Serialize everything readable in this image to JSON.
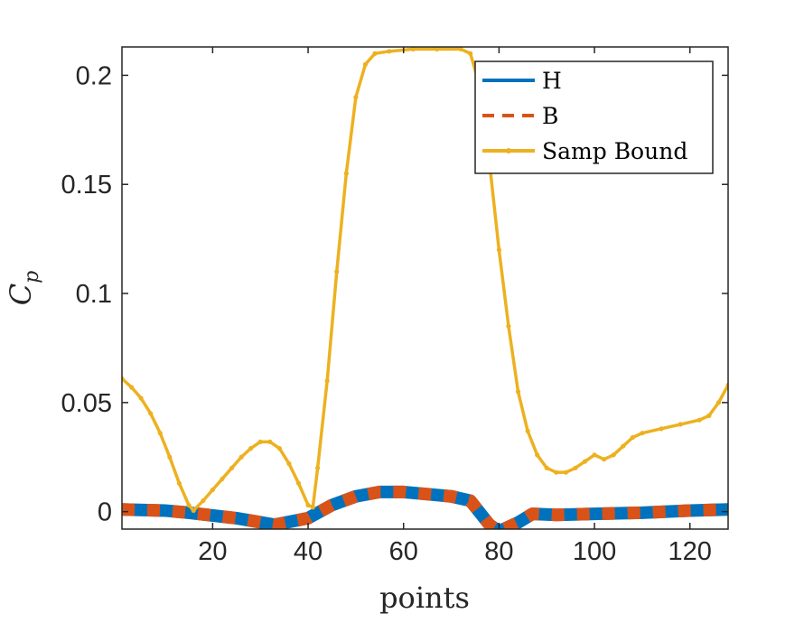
{
  "chart_data": {
    "type": "line",
    "xlabel": "points",
    "ylabel_base": "C",
    "ylabel_sub": "p",
    "xlim": [
      1,
      128
    ],
    "ylim": [
      -0.008,
      0.213
    ],
    "xticks": [
      20,
      40,
      60,
      80,
      100,
      120
    ],
    "yticks": [
      0,
      0.05,
      0.1,
      0.15,
      0.2
    ],
    "xtick_labels": [
      "20",
      "40",
      "60",
      "80",
      "100",
      "120"
    ],
    "ytick_labels": [
      "0",
      "0.05",
      "0.1",
      "0.15",
      "0.2"
    ],
    "grid": false,
    "legend_position": "top-right",
    "series": [
      {
        "name": "H",
        "color": "#0072BD",
        "style": "solid",
        "points": [
          [
            1,
            0.001
          ],
          [
            10,
            0.0005
          ],
          [
            15,
            -0.0005
          ],
          [
            25,
            -0.003
          ],
          [
            33,
            -0.006
          ],
          [
            40,
            -0.003
          ],
          [
            45,
            0.003
          ],
          [
            50,
            0.007
          ],
          [
            55,
            0.009
          ],
          [
            60,
            0.009
          ],
          [
            65,
            0.008
          ],
          [
            70,
            0.007
          ],
          [
            74,
            0.005
          ],
          [
            78,
            -0.006
          ],
          [
            80,
            -0.009
          ],
          [
            84,
            -0.005
          ],
          [
            87,
            -0.001
          ],
          [
            92,
            -0.0015
          ],
          [
            100,
            -0.001
          ],
          [
            110,
            -0.0005
          ],
          [
            120,
            0.0005
          ],
          [
            128,
            0.001
          ]
        ]
      },
      {
        "name": "B",
        "color": "#D95319",
        "style": "dashed",
        "points": [
          [
            1,
            0.001
          ],
          [
            10,
            0.0005
          ],
          [
            15,
            -0.0005
          ],
          [
            25,
            -0.003
          ],
          [
            33,
            -0.006
          ],
          [
            40,
            -0.003
          ],
          [
            45,
            0.003
          ],
          [
            50,
            0.007
          ],
          [
            55,
            0.009
          ],
          [
            60,
            0.009
          ],
          [
            65,
            0.008
          ],
          [
            70,
            0.007
          ],
          [
            74,
            0.005
          ],
          [
            78,
            -0.006
          ],
          [
            80,
            -0.009
          ],
          [
            84,
            -0.005
          ],
          [
            87,
            -0.001
          ],
          [
            92,
            -0.0015
          ],
          [
            100,
            -0.001
          ],
          [
            110,
            -0.0005
          ],
          [
            120,
            0.0005
          ],
          [
            128,
            0.001
          ]
        ]
      },
      {
        "name": "Samp Bound",
        "color": "#EDB120",
        "style": "solid-dot",
        "points": [
          [
            1,
            0.061
          ],
          [
            3,
            0.057
          ],
          [
            5,
            0.052
          ],
          [
            7,
            0.045
          ],
          [
            9,
            0.036
          ],
          [
            11,
            0.025
          ],
          [
            13,
            0.013
          ],
          [
            15,
            0.003
          ],
          [
            16,
            0.0005
          ],
          [
            18,
            0.005
          ],
          [
            20,
            0.01
          ],
          [
            22,
            0.015
          ],
          [
            24,
            0.02
          ],
          [
            26,
            0.025
          ],
          [
            28,
            0.029
          ],
          [
            30,
            0.032
          ],
          [
            32,
            0.032
          ],
          [
            34,
            0.029
          ],
          [
            36,
            0.022
          ],
          [
            38,
            0.013
          ],
          [
            40,
            0.003
          ],
          [
            41,
            0.002
          ],
          [
            42,
            0.02
          ],
          [
            44,
            0.06
          ],
          [
            46,
            0.11
          ],
          [
            48,
            0.155
          ],
          [
            50,
            0.19
          ],
          [
            52,
            0.205
          ],
          [
            54,
            0.21
          ],
          [
            57,
            0.211
          ],
          [
            62,
            0.212
          ],
          [
            67,
            0.212
          ],
          [
            72,
            0.212
          ],
          [
            74,
            0.21
          ],
          [
            76,
            0.195
          ],
          [
            78,
            0.16
          ],
          [
            80,
            0.12
          ],
          [
            82,
            0.085
          ],
          [
            84,
            0.055
          ],
          [
            86,
            0.037
          ],
          [
            88,
            0.026
          ],
          [
            90,
            0.02
          ],
          [
            92,
            0.018
          ],
          [
            94,
            0.018
          ],
          [
            96,
            0.02
          ],
          [
            98,
            0.023
          ],
          [
            100,
            0.026
          ],
          [
            102,
            0.024
          ],
          [
            104,
            0.026
          ],
          [
            106,
            0.03
          ],
          [
            108,
            0.034
          ],
          [
            110,
            0.036
          ],
          [
            114,
            0.038
          ],
          [
            118,
            0.04
          ],
          [
            122,
            0.042
          ],
          [
            124,
            0.044
          ],
          [
            126,
            0.05
          ],
          [
            128,
            0.058
          ]
        ]
      }
    ]
  }
}
